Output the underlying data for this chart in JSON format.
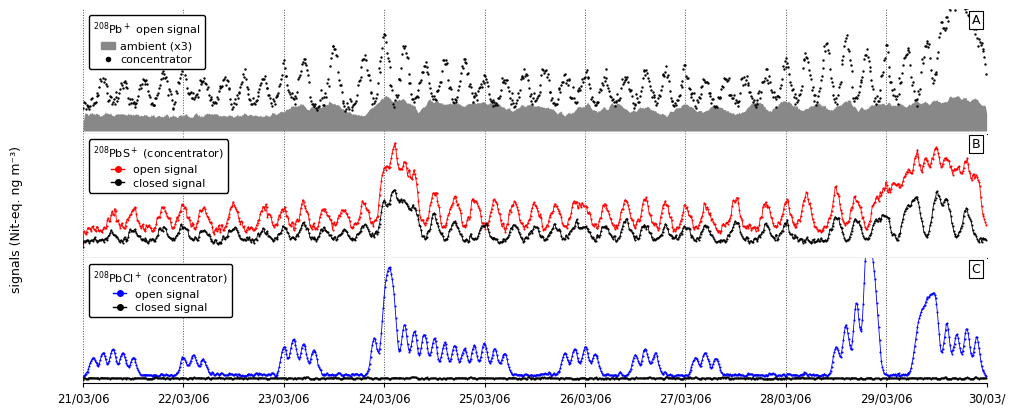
{
  "ylabel": "signals (Nit-eq. ng m⁻³)",
  "xlabel_dates": [
    "21/03/06",
    "22/03/06",
    "23/03/06",
    "24/03/06",
    "25/03/06",
    "26/03/06",
    "27/03/06",
    "28/03/06",
    "29/03/06",
    "30/03/"
  ],
  "panel_A_legend_title": "$^{208}$Pb$^+$ open signal",
  "panel_A_legend_ambient": "ambient (x3)",
  "panel_A_legend_conc": "concentrator",
  "panel_B_legend_title": "$^{208}$PbS$^+$ (concentrator)",
  "panel_B_legend_open": "open signal",
  "panel_B_legend_closed": "closed signal",
  "panel_C_legend_title": "$^{208}$PbCl$^+$ (concentrator)",
  "panel_C_legend_open": "open signal",
  "panel_C_legend_closed": "closed signal",
  "color_ambient": "#888888",
  "color_black": "#000000",
  "color_red": "#ff0000",
  "color_blue": "#0000ff",
  "dpi": 100,
  "figsize": [
    9.93,
    4.27
  ]
}
